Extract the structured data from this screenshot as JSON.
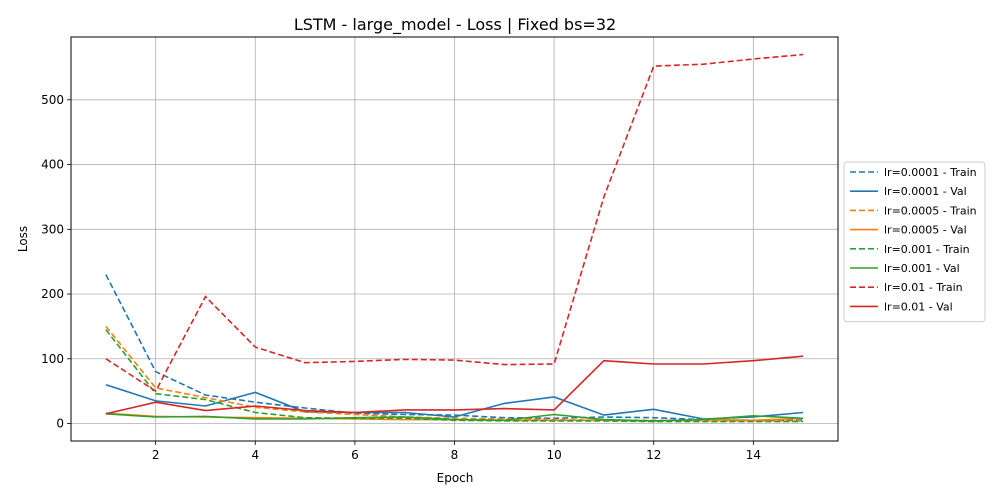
{
  "chart_data": {
    "type": "line",
    "title": "LSTM - large_model - Loss | Fixed bs=32",
    "xlabel": "Epoch",
    "ylabel": "Loss",
    "x": [
      1,
      2,
      3,
      4,
      5,
      6,
      7,
      8,
      9,
      10,
      11,
      12,
      13,
      14,
      15
    ],
    "xlim": [
      0.3,
      15.7
    ],
    "ylim": [
      -27,
      597
    ],
    "xticks": [
      2,
      4,
      6,
      8,
      10,
      12,
      14
    ],
    "yticks": [
      0,
      100,
      200,
      300,
      400,
      500
    ],
    "grid": true,
    "legend_position": "right, outside plot",
    "series": [
      {
        "name": "lr=0.0001 - Train",
        "color": "#1f77b4",
        "dash": true,
        "values": [
          230,
          80,
          44,
          33,
          24,
          16,
          14,
          13,
          9,
          8,
          10,
          9,
          6,
          5,
          5
        ]
      },
      {
        "name": "lr=0.0001 - Val",
        "color": "#1f77b4",
        "dash": false,
        "values": [
          60,
          35,
          27,
          48,
          18,
          17,
          17,
          10,
          31,
          41,
          13,
          22,
          7,
          10,
          17
        ]
      },
      {
        "name": "lr=0.0005 - Train",
        "color": "#ff7f0e",
        "dash": true,
        "values": [
          150,
          55,
          40,
          25,
          18,
          14,
          10,
          8,
          7,
          6,
          5,
          5,
          4,
          4,
          4
        ]
      },
      {
        "name": "lr=0.0005 - Val",
        "color": "#ff7f0e",
        "dash": false,
        "values": [
          16,
          11,
          10,
          9,
          8,
          7,
          6,
          6,
          5,
          5,
          5,
          4,
          6,
          5,
          8
        ]
      },
      {
        "name": "lr=0.001 - Train",
        "color": "#2ca02c",
        "dash": true,
        "values": [
          145,
          46,
          37,
          17,
          9,
          8,
          8,
          5,
          4,
          4,
          4,
          3,
          3,
          3,
          3
        ]
      },
      {
        "name": "lr=0.001 - Val",
        "color": "#2ca02c",
        "dash": false,
        "values": [
          15,
          10,
          11,
          7,
          7,
          9,
          10,
          6,
          5,
          14,
          6,
          4,
          6,
          12,
          8
        ]
      },
      {
        "name": "lr=0.01 - Train",
        "color": "#d62728",
        "dash": true,
        "values": [
          100,
          50,
          196,
          118,
          94,
          96,
          99,
          98,
          91,
          92,
          350,
          552,
          555,
          563,
          570
        ]
      },
      {
        "name": "lr=0.01 - Val",
        "color": "#d62728",
        "dash": false,
        "values": [
          15,
          33,
          20,
          27,
          20,
          17,
          21,
          21,
          23,
          21,
          97,
          92,
          92,
          97,
          104
        ]
      }
    ]
  }
}
